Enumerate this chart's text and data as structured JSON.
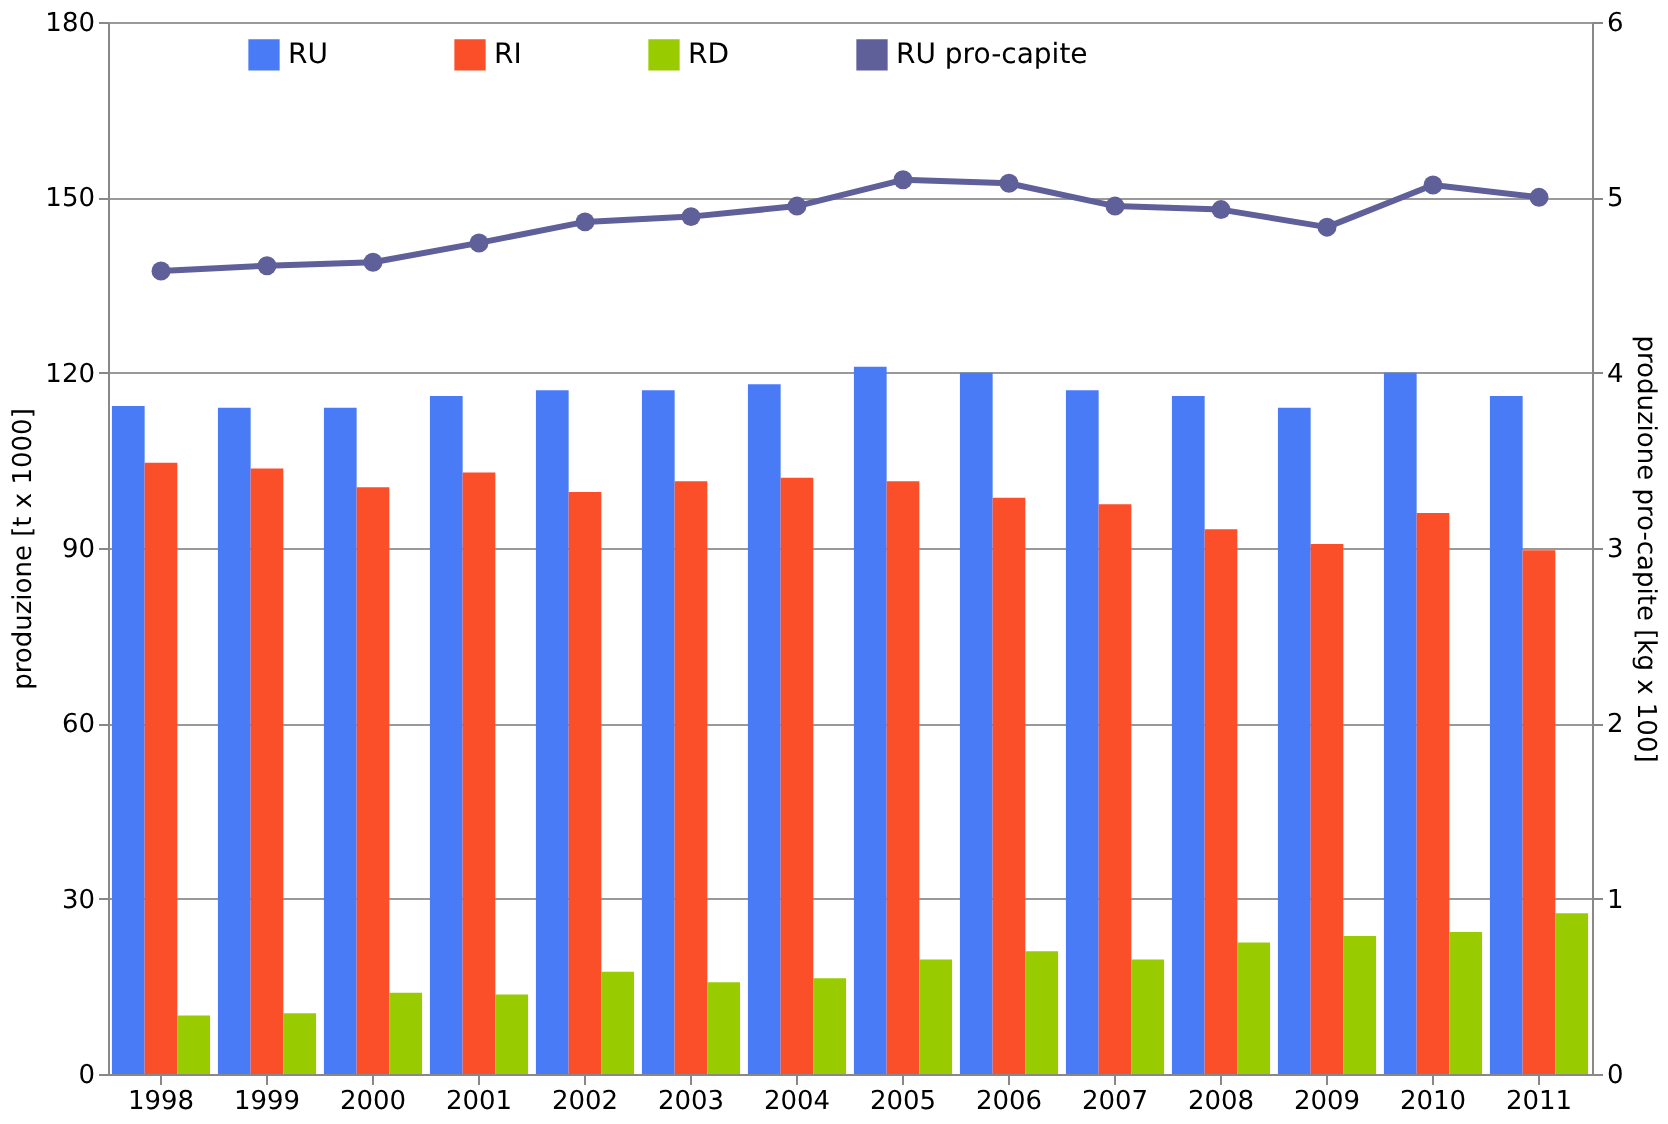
{
  "chart_data": {
    "type": "bar",
    "ylabel": "produzione [t x 1000]",
    "y2label": "produzione pro-capite [kg x 100]",
    "categories": [
      "1998",
      "1999",
      "2000",
      "2001",
      "2002",
      "2003",
      "2004",
      "2005",
      "2006",
      "2007",
      "2008",
      "2009",
      "2010",
      "2011"
    ],
    "series": [
      {
        "name": "RU",
        "color": "#4a7bf7",
        "values": [
          114.3,
          114,
          114,
          116,
          117,
          117,
          118,
          121,
          120,
          117,
          116,
          114,
          120,
          116
        ]
      },
      {
        "name": "RI",
        "color": "#fb4f2a",
        "values": [
          104.6,
          103.6,
          100.4,
          102.9,
          99.6,
          101.4,
          102,
          101.4,
          98.6,
          97.5,
          93.2,
          90.7,
          96,
          89.6
        ]
      },
      {
        "name": "RD",
        "color": "#99cc00",
        "values": [
          10,
          10.4,
          13.9,
          13.6,
          17.5,
          15.7,
          16.4,
          19.6,
          21,
          19.6,
          22.5,
          23.6,
          24.3,
          27.5
        ]
      },
      {
        "name": "RU pro-capite",
        "color": "#5f5f9a",
        "type": "line",
        "axis": "y2",
        "marker": "circle",
        "line_style": "solid",
        "values": [
          4.58,
          4.61,
          4.63,
          4.74,
          4.86,
          4.89,
          4.95,
          5.1,
          5.08,
          4.95,
          4.93,
          4.83,
          5.07,
          5.0
        ]
      }
    ],
    "ylim": [
      0,
      180
    ],
    "yticks": [
      0,
      30,
      60,
      90,
      120,
      150,
      180
    ],
    "y2lim": [
      0,
      6
    ],
    "y2ticks": [
      0,
      1,
      2,
      3,
      4,
      5,
      6
    ],
    "grid": "y",
    "legend": "top"
  }
}
